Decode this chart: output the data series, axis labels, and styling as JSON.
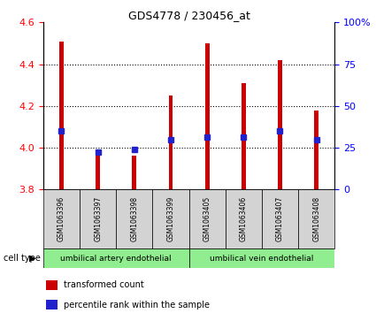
{
  "title": "GDS4778 / 230456_at",
  "samples": [
    "GSM1063396",
    "GSM1063397",
    "GSM1063398",
    "GSM1063399",
    "GSM1063405",
    "GSM1063406",
    "GSM1063407",
    "GSM1063408"
  ],
  "bar_values": [
    4.51,
    3.97,
    3.96,
    4.25,
    4.5,
    4.31,
    4.42,
    4.18
  ],
  "bar_base": 3.8,
  "percentile_values": [
    4.08,
    3.98,
    3.99,
    4.04,
    4.05,
    4.05,
    4.08,
    4.04
  ],
  "bar_color": "#cc0000",
  "blue_color": "#2222cc",
  "ylim_left": [
    3.8,
    4.6
  ],
  "ylim_right": [
    0,
    100
  ],
  "yticks_left": [
    3.8,
    4.0,
    4.2,
    4.4,
    4.6
  ],
  "yticks_right": [
    0,
    25,
    50,
    75,
    100
  ],
  "ytick_labels_right": [
    "0",
    "25",
    "50",
    "75",
    "100%"
  ],
  "group1_label": "umbilical artery endothelial",
  "group2_label": "umbilical vein endothelial",
  "group1_indices": [
    0,
    1,
    2,
    3
  ],
  "group2_indices": [
    4,
    5,
    6,
    7
  ],
  "legend_red_label": "transformed count",
  "legend_blue_label": "percentile rank within the sample",
  "cell_type_label": "cell type",
  "bg_color": "#ffffff",
  "sample_box_color": "#d3d3d3",
  "group_box_color": "#90ee90",
  "bar_width": 0.12,
  "blue_marker_size": 4,
  "plot_bg": "#ffffff"
}
